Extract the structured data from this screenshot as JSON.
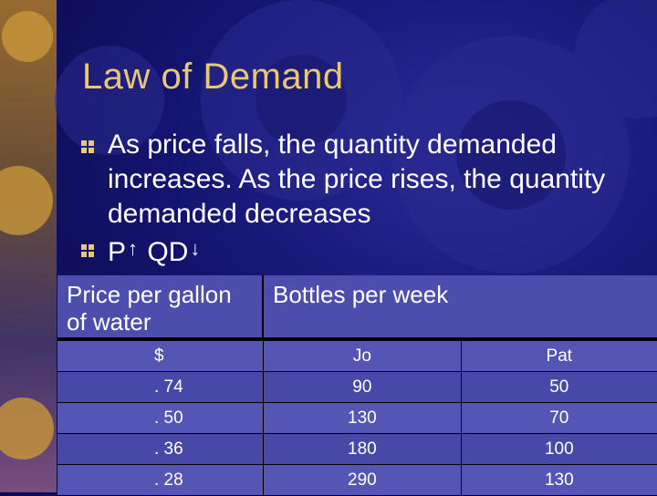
{
  "slide": {
    "title": "Law of Demand",
    "bullets": [
      {
        "text": "As price falls, the quantity demanded increases.  As the price rises, the quantity demanded decreases"
      },
      {
        "p": "P",
        "p_arrow": "↑",
        "qd": "QD",
        "qd_arrow": "↓"
      }
    ]
  },
  "table": {
    "header": {
      "col1": "Price per gallon of water",
      "col2": "Bottles per week"
    },
    "columns": [
      "$",
      "Jo",
      "Pat"
    ],
    "rows": [
      [
        ". 74",
        "90",
        "50"
      ],
      [
        ". 50",
        "130",
        "70"
      ],
      [
        ". 36",
        "180",
        "100"
      ],
      [
        ". 28",
        "290",
        "130"
      ]
    ]
  },
  "colors": {
    "title": "#e8c878",
    "bullet_mark": "#e8c878",
    "table_bg": "#4d4dad",
    "background": "#141470"
  },
  "icons": {
    "bullet": "square-bullet-icon",
    "decor": "gear-icon"
  }
}
